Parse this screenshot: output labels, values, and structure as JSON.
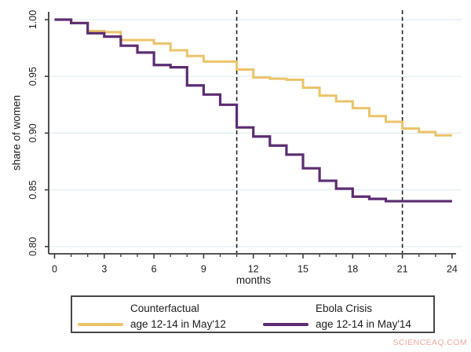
{
  "watermark": "SCIENCEAQ.COM",
  "colors": {
    "background": "#ffffff",
    "grid": "#e2edf3",
    "axis": "#3d3d3d",
    "text": "#1c1c1c",
    "reference_line": "#222222",
    "legend_border": "#474747",
    "watermark": "#f1a9a3",
    "counterfactual": "#ecc369",
    "ebola": "#5c2d72"
  },
  "chart_data": {
    "type": "line",
    "subtype": "step",
    "title": "",
    "xlabel": "months",
    "ylabel": "share of women",
    "xlim": [
      0,
      24
    ],
    "ylim": [
      0.8,
      1.0
    ],
    "grid": true,
    "legend_position": "bottom",
    "x_ticks": [
      0,
      3,
      6,
      9,
      12,
      15,
      18,
      21,
      24
    ],
    "x_tick_labels": [
      "0",
      "3",
      "6",
      "9",
      "12",
      "15",
      "18",
      "21",
      "24"
    ],
    "x_minor_tick_step": 1,
    "y_ticks": [
      1.0,
      0.95,
      0.9,
      0.85,
      0.8
    ],
    "y_tick_labels": [
      "1.00",
      "0.95",
      "0.90",
      "0.85",
      "0.80"
    ],
    "reference_lines_x": [
      11,
      21
    ],
    "x": [
      0,
      1,
      2,
      3,
      4,
      5,
      6,
      7,
      8,
      9,
      10,
      11,
      12,
      13,
      14,
      15,
      16,
      17,
      18,
      19,
      20,
      21,
      22,
      23,
      24
    ],
    "series": [
      {
        "name": "Counterfactual",
        "subtitle": "age 12-14 in May'12",
        "color": "#ecc369",
        "values": [
          1.0,
          0.997,
          0.99,
          0.989,
          0.982,
          0.982,
          0.979,
          0.973,
          0.968,
          0.963,
          0.963,
          0.956,
          0.949,
          0.948,
          0.947,
          0.94,
          0.933,
          0.928,
          0.922,
          0.915,
          0.91,
          0.904,
          0.901,
          0.898,
          0.898
        ]
      },
      {
        "name": "Ebola Crisis",
        "subtitle": "age 12-14 in May'14",
        "color": "#5c2d72",
        "values": [
          1.0,
          0.997,
          0.988,
          0.985,
          0.977,
          0.971,
          0.96,
          0.958,
          0.942,
          0.934,
          0.925,
          0.905,
          0.897,
          0.889,
          0.881,
          0.869,
          0.858,
          0.851,
          0.844,
          0.842,
          0.84,
          0.84,
          0.84,
          0.84,
          0.84
        ]
      }
    ]
  }
}
